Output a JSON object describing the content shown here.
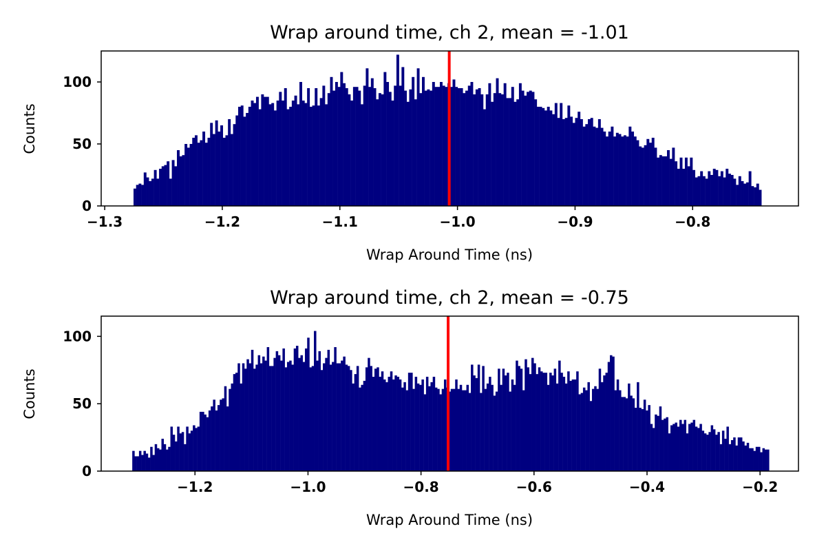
{
  "chart_data": [
    {
      "type": "bar",
      "title": "Wrap around time, ch 2, mean = -1.01",
      "xlabel": "Wrap Around Time (ns)",
      "ylabel": "Counts",
      "xlim": [
        -1.303,
        -0.71
      ],
      "ylim": [
        0,
        125
      ],
      "grid": false,
      "legend": "none",
      "bar_color": "#000080",
      "mean_line_color": "#ff0000",
      "mean_value": -1.007,
      "bin_start": -1.2755,
      "bin_end": -0.7415,
      "xticks": [
        -1.3,
        -1.2,
        -1.1,
        -1.0,
        -0.9,
        -0.8
      ],
      "xtick_labels": [
        "−1.3",
        "−1.2",
        "−1.1",
        "−1.0",
        "−0.9",
        "−0.8"
      ],
      "yticks": [
        0,
        50,
        100
      ],
      "ytick_labels": [
        "0",
        "50",
        "100"
      ],
      "counts": [
        14,
        17,
        18,
        17,
        27,
        23,
        20,
        22,
        29,
        22,
        30,
        32,
        33,
        36,
        22,
        37,
        32,
        45,
        40,
        41,
        50,
        47,
        50,
        55,
        57,
        51,
        53,
        60,
        51,
        55,
        67,
        58,
        69,
        60,
        65,
        55,
        57,
        70,
        58,
        66,
        73,
        80,
        81,
        72,
        75,
        80,
        85,
        83,
        88,
        78,
        90,
        88,
        88,
        82,
        83,
        77,
        85,
        92,
        85,
        95,
        78,
        80,
        85,
        89,
        82,
        100,
        85,
        83,
        95,
        80,
        81,
        95,
        81,
        87,
        97,
        82,
        91,
        104,
        93,
        100,
        96,
        108,
        99,
        95,
        90,
        85,
        96,
        96,
        93,
        82,
        97,
        111,
        96,
        103,
        95,
        86,
        91,
        90,
        108,
        100,
        92,
        85,
        97,
        122,
        97,
        112,
        93,
        84,
        94,
        104,
        86,
        111,
        91,
        104,
        93,
        94,
        93,
        100,
        96,
        96,
        100,
        97,
        96,
        99,
        96,
        102,
        96,
        95,
        95,
        91,
        93,
        97,
        100,
        90,
        94,
        95,
        90,
        78,
        90,
        99,
        84,
        91,
        103,
        91,
        90,
        99,
        87,
        87,
        96,
        84,
        86,
        99,
        93,
        89,
        92,
        93,
        92,
        86,
        80,
        80,
        79,
        77,
        80,
        77,
        74,
        83,
        71,
        83,
        70,
        71,
        81,
        72,
        67,
        71,
        76,
        70,
        64,
        66,
        70,
        71,
        64,
        63,
        70,
        63,
        60,
        56,
        60,
        64,
        56,
        59,
        58,
        56,
        57,
        56,
        64,
        60,
        56,
        53,
        48,
        47,
        49,
        54,
        51,
        55,
        47,
        39,
        41,
        40,
        40,
        45,
        38,
        47,
        36,
        30,
        39,
        30,
        39,
        32,
        39,
        29,
        23,
        24,
        28,
        24,
        22,
        28,
        25,
        30,
        29,
        24,
        28,
        23,
        30,
        26,
        25,
        22,
        17,
        24,
        20,
        18,
        19,
        28,
        16,
        15,
        18,
        13
      ]
    },
    {
      "type": "bar",
      "title": "Wrap around time, ch 2, mean = -0.75",
      "xlabel": "Wrap Around Time (ns)",
      "ylabel": "Counts",
      "xlim": [
        -1.366,
        -0.132
      ],
      "ylim": [
        0,
        115
      ],
      "grid": false,
      "legend": "none",
      "bar_color": "#000080",
      "mean_line_color": "#ff0000",
      "mean_value": -0.752,
      "bin_start": -1.311,
      "bin_end": -0.184,
      "xticks": [
        -1.2,
        -1.0,
        -0.8,
        -0.6,
        -0.4,
        -0.2
      ],
      "xtick_labels": [
        "−1.2",
        "−1.0",
        "−0.8",
        "−0.6",
        "−0.4",
        "−0.2"
      ],
      "yticks": [
        0,
        50,
        100
      ],
      "ytick_labels": [
        "0",
        "50",
        "100"
      ],
      "counts": [
        15,
        11,
        11,
        15,
        12,
        15,
        13,
        10,
        18,
        12,
        20,
        17,
        16,
        24,
        20,
        16,
        18,
        33,
        27,
        22,
        33,
        28,
        29,
        20,
        33,
        28,
        30,
        34,
        32,
        33,
        44,
        44,
        42,
        40,
        45,
        48,
        53,
        45,
        49,
        53,
        54,
        63,
        48,
        61,
        65,
        72,
        73,
        80,
        65,
        80,
        76,
        83,
        80,
        90,
        76,
        79,
        86,
        80,
        85,
        82,
        92,
        78,
        78,
        84,
        89,
        86,
        82,
        91,
        77,
        81,
        82,
        79,
        91,
        93,
        84,
        86,
        81,
        91,
        99,
        77,
        78,
        104,
        82,
        89,
        75,
        80,
        84,
        90,
        79,
        81,
        92,
        80,
        80,
        82,
        85,
        79,
        78,
        75,
        65,
        72,
        78,
        62,
        64,
        67,
        77,
        84,
        78,
        70,
        76,
        77,
        70,
        74,
        68,
        66,
        70,
        74,
        68,
        71,
        70,
        68,
        62,
        66,
        60,
        73,
        73,
        61,
        70,
        65,
        64,
        68,
        57,
        70,
        63,
        66,
        70,
        62,
        61,
        57,
        61,
        68,
        62,
        59,
        61,
        61,
        68,
        61,
        64,
        60,
        60,
        64,
        58,
        79,
        71,
        69,
        79,
        58,
        78,
        61,
        65,
        70,
        64,
        56,
        59,
        76,
        64,
        76,
        71,
        73,
        59,
        68,
        64,
        82,
        78,
        76,
        60,
        83,
        77,
        72,
        84,
        80,
        72,
        77,
        74,
        73,
        73,
        64,
        73,
        71,
        76,
        65,
        82,
        73,
        70,
        65,
        74,
        67,
        68,
        68,
        74,
        57,
        58,
        62,
        60,
        66,
        52,
        61,
        63,
        61,
        76,
        66,
        71,
        73,
        81,
        86,
        85,
        60,
        68,
        60,
        55,
        55,
        54,
        65,
        56,
        54,
        47,
        66,
        47,
        46,
        53,
        45,
        49,
        35,
        32,
        42,
        41,
        48,
        38,
        39,
        40,
        28,
        34,
        35,
        36,
        33,
        38,
        35,
        38,
        28,
        35,
        36,
        38,
        33,
        32,
        35,
        30,
        28,
        27,
        29,
        34,
        31,
        27,
        29,
        20,
        30,
        24,
        33,
        20,
        23,
        25,
        19,
        25,
        25,
        22,
        19,
        21,
        17,
        17,
        15,
        18,
        18,
        14,
        17,
        16,
        16
      ]
    }
  ]
}
